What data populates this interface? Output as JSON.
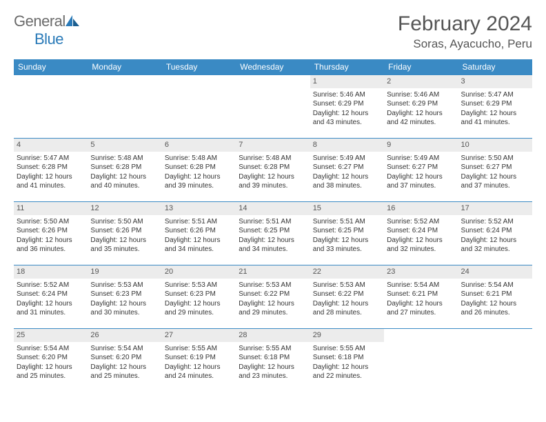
{
  "logo": {
    "text_general": "General",
    "text_blue": "Blue"
  },
  "title": "February 2024",
  "location": "Soras, Ayacucho, Peru",
  "colors": {
    "header_bg": "#3a8ac4",
    "header_text": "#ffffff",
    "daynum_bg": "#ececec",
    "text": "#333333",
    "border": "#3a8ac4",
    "logo_gray": "#6b6b6b",
    "logo_blue": "#2a7ab8"
  },
  "day_names": [
    "Sunday",
    "Monday",
    "Tuesday",
    "Wednesday",
    "Thursday",
    "Friday",
    "Saturday"
  ],
  "weeks": [
    [
      {
        "empty": true
      },
      {
        "empty": true
      },
      {
        "empty": true
      },
      {
        "empty": true
      },
      {
        "num": "1",
        "sunrise": "Sunrise: 5:46 AM",
        "sunset": "Sunset: 6:29 PM",
        "daylight_a": "Daylight: 12 hours",
        "daylight_b": "and 43 minutes."
      },
      {
        "num": "2",
        "sunrise": "Sunrise: 5:46 AM",
        "sunset": "Sunset: 6:29 PM",
        "daylight_a": "Daylight: 12 hours",
        "daylight_b": "and 42 minutes."
      },
      {
        "num": "3",
        "sunrise": "Sunrise: 5:47 AM",
        "sunset": "Sunset: 6:29 PM",
        "daylight_a": "Daylight: 12 hours",
        "daylight_b": "and 41 minutes."
      }
    ],
    [
      {
        "num": "4",
        "sunrise": "Sunrise: 5:47 AM",
        "sunset": "Sunset: 6:28 PM",
        "daylight_a": "Daylight: 12 hours",
        "daylight_b": "and 41 minutes."
      },
      {
        "num": "5",
        "sunrise": "Sunrise: 5:48 AM",
        "sunset": "Sunset: 6:28 PM",
        "daylight_a": "Daylight: 12 hours",
        "daylight_b": "and 40 minutes."
      },
      {
        "num": "6",
        "sunrise": "Sunrise: 5:48 AM",
        "sunset": "Sunset: 6:28 PM",
        "daylight_a": "Daylight: 12 hours",
        "daylight_b": "and 39 minutes."
      },
      {
        "num": "7",
        "sunrise": "Sunrise: 5:48 AM",
        "sunset": "Sunset: 6:28 PM",
        "daylight_a": "Daylight: 12 hours",
        "daylight_b": "and 39 minutes."
      },
      {
        "num": "8",
        "sunrise": "Sunrise: 5:49 AM",
        "sunset": "Sunset: 6:27 PM",
        "daylight_a": "Daylight: 12 hours",
        "daylight_b": "and 38 minutes."
      },
      {
        "num": "9",
        "sunrise": "Sunrise: 5:49 AM",
        "sunset": "Sunset: 6:27 PM",
        "daylight_a": "Daylight: 12 hours",
        "daylight_b": "and 37 minutes."
      },
      {
        "num": "10",
        "sunrise": "Sunrise: 5:50 AM",
        "sunset": "Sunset: 6:27 PM",
        "daylight_a": "Daylight: 12 hours",
        "daylight_b": "and 37 minutes."
      }
    ],
    [
      {
        "num": "11",
        "sunrise": "Sunrise: 5:50 AM",
        "sunset": "Sunset: 6:26 PM",
        "daylight_a": "Daylight: 12 hours",
        "daylight_b": "and 36 minutes."
      },
      {
        "num": "12",
        "sunrise": "Sunrise: 5:50 AM",
        "sunset": "Sunset: 6:26 PM",
        "daylight_a": "Daylight: 12 hours",
        "daylight_b": "and 35 minutes."
      },
      {
        "num": "13",
        "sunrise": "Sunrise: 5:51 AM",
        "sunset": "Sunset: 6:26 PM",
        "daylight_a": "Daylight: 12 hours",
        "daylight_b": "and 34 minutes."
      },
      {
        "num": "14",
        "sunrise": "Sunrise: 5:51 AM",
        "sunset": "Sunset: 6:25 PM",
        "daylight_a": "Daylight: 12 hours",
        "daylight_b": "and 34 minutes."
      },
      {
        "num": "15",
        "sunrise": "Sunrise: 5:51 AM",
        "sunset": "Sunset: 6:25 PM",
        "daylight_a": "Daylight: 12 hours",
        "daylight_b": "and 33 minutes."
      },
      {
        "num": "16",
        "sunrise": "Sunrise: 5:52 AM",
        "sunset": "Sunset: 6:24 PM",
        "daylight_a": "Daylight: 12 hours",
        "daylight_b": "and 32 minutes."
      },
      {
        "num": "17",
        "sunrise": "Sunrise: 5:52 AM",
        "sunset": "Sunset: 6:24 PM",
        "daylight_a": "Daylight: 12 hours",
        "daylight_b": "and 32 minutes."
      }
    ],
    [
      {
        "num": "18",
        "sunrise": "Sunrise: 5:52 AM",
        "sunset": "Sunset: 6:24 PM",
        "daylight_a": "Daylight: 12 hours",
        "daylight_b": "and 31 minutes."
      },
      {
        "num": "19",
        "sunrise": "Sunrise: 5:53 AM",
        "sunset": "Sunset: 6:23 PM",
        "daylight_a": "Daylight: 12 hours",
        "daylight_b": "and 30 minutes."
      },
      {
        "num": "20",
        "sunrise": "Sunrise: 5:53 AM",
        "sunset": "Sunset: 6:23 PM",
        "daylight_a": "Daylight: 12 hours",
        "daylight_b": "and 29 minutes."
      },
      {
        "num": "21",
        "sunrise": "Sunrise: 5:53 AM",
        "sunset": "Sunset: 6:22 PM",
        "daylight_a": "Daylight: 12 hours",
        "daylight_b": "and 29 minutes."
      },
      {
        "num": "22",
        "sunrise": "Sunrise: 5:53 AM",
        "sunset": "Sunset: 6:22 PM",
        "daylight_a": "Daylight: 12 hours",
        "daylight_b": "and 28 minutes."
      },
      {
        "num": "23",
        "sunrise": "Sunrise: 5:54 AM",
        "sunset": "Sunset: 6:21 PM",
        "daylight_a": "Daylight: 12 hours",
        "daylight_b": "and 27 minutes."
      },
      {
        "num": "24",
        "sunrise": "Sunrise: 5:54 AM",
        "sunset": "Sunset: 6:21 PM",
        "daylight_a": "Daylight: 12 hours",
        "daylight_b": "and 26 minutes."
      }
    ],
    [
      {
        "num": "25",
        "sunrise": "Sunrise: 5:54 AM",
        "sunset": "Sunset: 6:20 PM",
        "daylight_a": "Daylight: 12 hours",
        "daylight_b": "and 25 minutes."
      },
      {
        "num": "26",
        "sunrise": "Sunrise: 5:54 AM",
        "sunset": "Sunset: 6:20 PM",
        "daylight_a": "Daylight: 12 hours",
        "daylight_b": "and 25 minutes."
      },
      {
        "num": "27",
        "sunrise": "Sunrise: 5:55 AM",
        "sunset": "Sunset: 6:19 PM",
        "daylight_a": "Daylight: 12 hours",
        "daylight_b": "and 24 minutes."
      },
      {
        "num": "28",
        "sunrise": "Sunrise: 5:55 AM",
        "sunset": "Sunset: 6:18 PM",
        "daylight_a": "Daylight: 12 hours",
        "daylight_b": "and 23 minutes."
      },
      {
        "num": "29",
        "sunrise": "Sunrise: 5:55 AM",
        "sunset": "Sunset: 6:18 PM",
        "daylight_a": "Daylight: 12 hours",
        "daylight_b": "and 22 minutes."
      },
      {
        "empty": true
      },
      {
        "empty": true
      }
    ]
  ]
}
